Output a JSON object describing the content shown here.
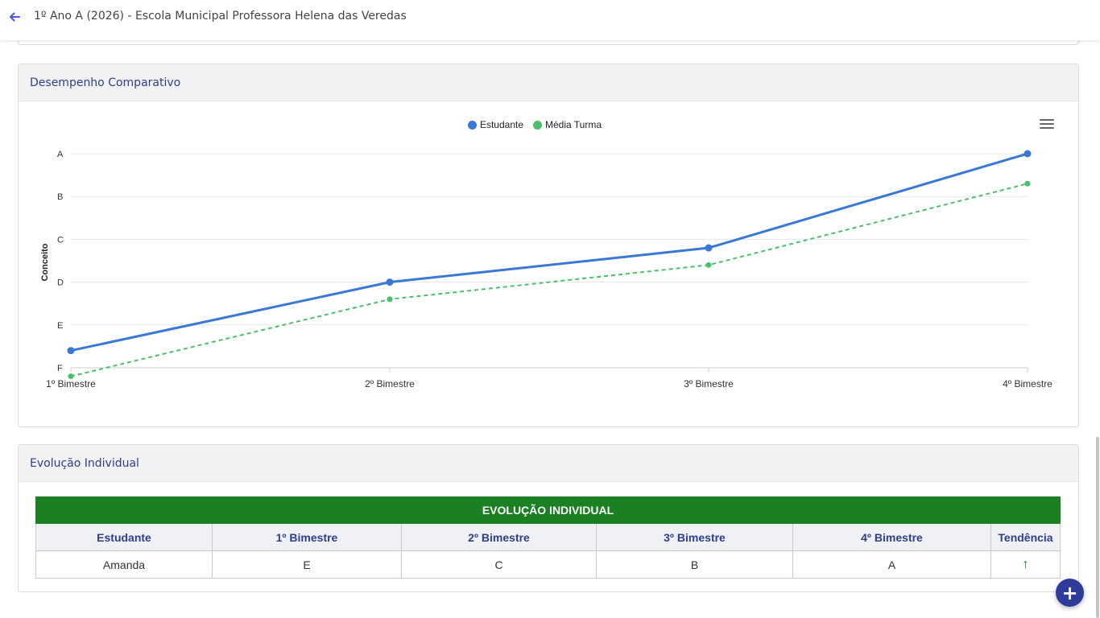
{
  "header": {
    "title": "1º Ano A (2026) - Escola Municipal Professora Helena das Veredas",
    "back_icon": "arrow-left-icon"
  },
  "chart_section": {
    "title": "Desempenho Comparativo",
    "menu_icon": "hamburger-menu-icon"
  },
  "chart_data": {
    "type": "line",
    "categories": [
      "1º Bimestre",
      "2º Bimestre",
      "3º Bimestre",
      "4º Bimestre"
    ],
    "y_categories": [
      "A",
      "B",
      "C",
      "D",
      "E",
      "F"
    ],
    "ylabel": "Conceito",
    "xlabel": "",
    "ylim": [
      0,
      5
    ],
    "grid": true,
    "legend_position": "top-center",
    "series": [
      {
        "name": "Estudante",
        "values": [
          4.6,
          3.0,
          2.2,
          0.0
        ],
        "color": "#3a78d8",
        "style": "solid"
      },
      {
        "name": "Média Turma",
        "values": [
          5.2,
          3.4,
          2.6,
          0.7
        ],
        "color": "#4cbf6b",
        "style": "dashed"
      }
    ]
  },
  "table_section": {
    "title": "Evolução Individual",
    "banner": "EVOLUÇÃO INDIVIDUAL",
    "columns": [
      "Estudante",
      "1º Bimestre",
      "2º Bimestre",
      "3º Bimestre",
      "4º Bimestre",
      "Tendência"
    ],
    "rows": [
      {
        "student": "Amanda",
        "b1": "E",
        "b2": "C",
        "b3": "B",
        "b4": "A",
        "trend": "↑",
        "trend_icon": "arrow-up-icon"
      }
    ],
    "accent_color": "#1a8021"
  },
  "fab": {
    "label": "+",
    "icon": "plus-icon"
  }
}
